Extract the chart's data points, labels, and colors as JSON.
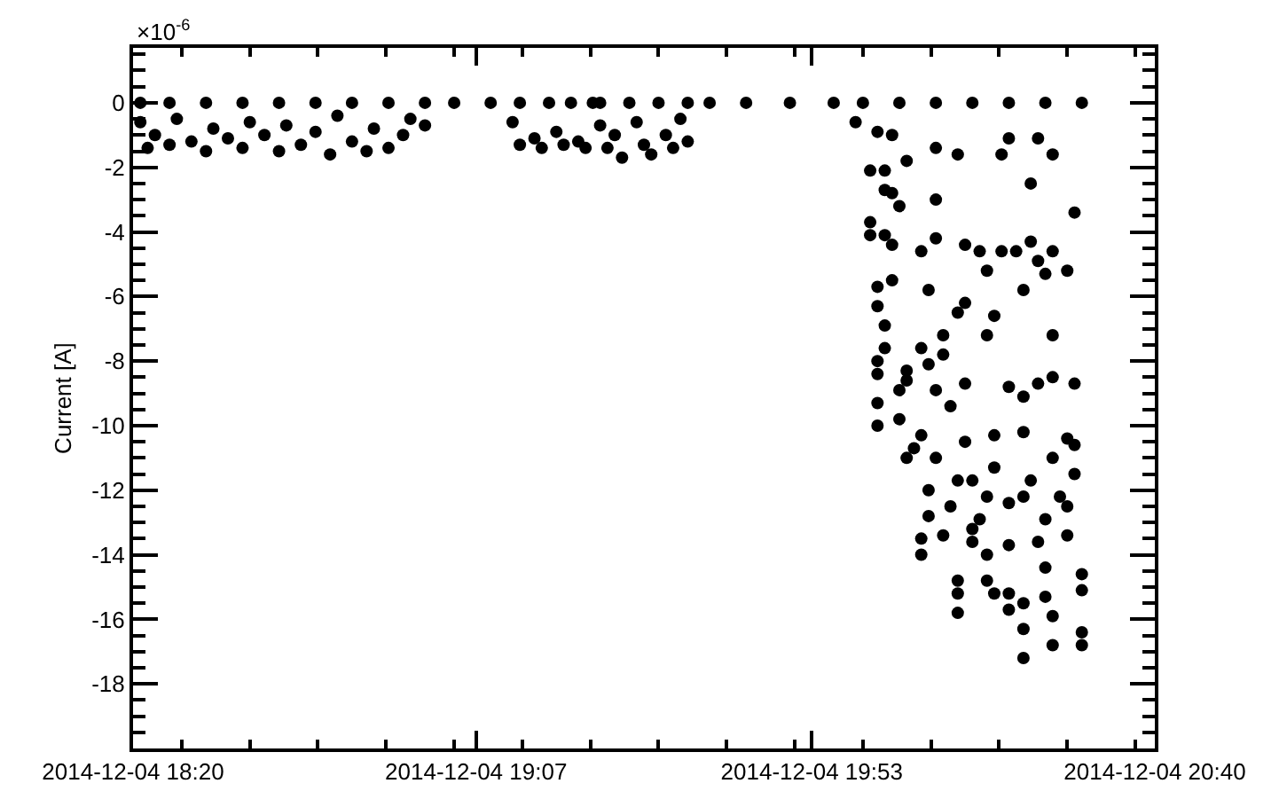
{
  "chart_data": {
    "type": "scatter",
    "ylabel": "Current [A]",
    "annotations": [
      "×10$^{-6}$"
    ],
    "xlim": [
      "2014-12-04T18:20",
      "2014-12-04T20:40"
    ],
    "xticks": [
      {
        "value": "2014-12-04T18:20",
        "label": "2014-12-04 18:20"
      },
      {
        "value": "2014-12-04T19:07",
        "label": "2014-12-04 19:07"
      },
      {
        "value": "2014-12-04T19:53",
        "label": "2014-12-04 19:53"
      },
      {
        "value": "2014-12-04T20:40",
        "label": "2014-12-04 20:40"
      }
    ],
    "ylim": [
      -20,
      1.7
    ],
    "yticks": [
      0,
      -2,
      -4,
      -6,
      -8,
      -10,
      -12,
      -14,
      -16,
      -18
    ],
    "marker": "circle",
    "series": [
      {
        "color": "#000000",
        "x": [
          "2014-12-04T18:21",
          "2014-12-04T18:25",
          "2014-12-04T18:30",
          "2014-12-04T18:35",
          "2014-12-04T18:40",
          "2014-12-04T18:45",
          "2014-12-04T18:50",
          "2014-12-04T18:55",
          "2014-12-04T19:00",
          "2014-12-04T19:04",
          "2014-12-04T18:21",
          "2014-12-04T18:22",
          "2014-12-04T18:23",
          "2014-12-04T18:25",
          "2014-12-04T18:26",
          "2014-12-04T18:28",
          "2014-12-04T18:30",
          "2014-12-04T18:31",
          "2014-12-04T18:33",
          "2014-12-04T18:35",
          "2014-12-04T18:36",
          "2014-12-04T18:38",
          "2014-12-04T18:40",
          "2014-12-04T18:41",
          "2014-12-04T18:43",
          "2014-12-04T18:45",
          "2014-12-04T18:47",
          "2014-12-04T18:48",
          "2014-12-04T18:50",
          "2014-12-04T18:52",
          "2014-12-04T18:53",
          "2014-12-04T18:55",
          "2014-12-04T18:57",
          "2014-12-04T18:58",
          "2014-12-04T19:00",
          "2014-12-04T19:09",
          "2014-12-04T19:13",
          "2014-12-04T19:17",
          "2014-12-04T19:20",
          "2014-12-04T19:23",
          "2014-12-04T19:12",
          "2014-12-04T19:13",
          "2014-12-04T19:15",
          "2014-12-04T19:16",
          "2014-12-04T19:18",
          "2014-12-04T19:19",
          "2014-12-04T19:21",
          "2014-12-04T19:22",
          "2014-12-04T19:24",
          "2014-12-04T19:28",
          "2014-12-04T19:32",
          "2014-12-04T19:36",
          "2014-12-04T19:39",
          "2014-12-04T19:24",
          "2014-12-04T19:25",
          "2014-12-04T19:26",
          "2014-12-04T19:27",
          "2014-12-04T19:29",
          "2014-12-04T19:30",
          "2014-12-04T19:31",
          "2014-12-04T19:33",
          "2014-12-04T19:34",
          "2014-12-04T19:35",
          "2014-12-04T19:36",
          "2014-12-04T19:44",
          "2014-12-04T19:50",
          "2014-12-04T19:56",
          "2014-12-04T20:00",
          "2014-12-04T20:05",
          "2014-12-04T20:10",
          "2014-12-04T20:15",
          "2014-12-04T20:20",
          "2014-12-04T20:25",
          "2014-12-04T20:30",
          "2014-12-04T19:59",
          "2014-12-04T20:02",
          "2014-12-04T20:04",
          "2014-12-04T20:10",
          "2014-12-04T20:13",
          "2014-12-04T20:19",
          "2014-12-04T20:20",
          "2014-12-04T20:24",
          "2014-12-04T20:26",
          "2014-12-04T20:06",
          "2014-12-04T20:01",
          "2014-12-04T20:03",
          "2014-12-04T20:23",
          "2014-12-04T20:03",
          "2014-12-04T20:04",
          "2014-12-04T20:05",
          "2014-12-04T20:10",
          "2014-12-04T20:29",
          "2014-12-04T20:01",
          "2014-12-04T20:01",
          "2014-12-04T20:03",
          "2014-12-04T20:04",
          "2014-12-04T20:10",
          "2014-12-04T20:08",
          "2014-12-04T20:14",
          "2014-12-04T20:16",
          "2014-12-04T20:17",
          "2014-12-04T20:19",
          "2014-12-04T20:21",
          "2014-12-04T20:23",
          "2014-12-04T20:24",
          "2014-12-04T20:25",
          "2014-12-04T20:26",
          "2014-12-04T20:28",
          "2014-12-04T20:02",
          "2014-12-04T20:04",
          "2014-12-04T20:09",
          "2014-12-04T20:22",
          "2014-12-04T20:02",
          "2014-12-04T20:14",
          "2014-12-04T20:13",
          "2014-12-04T20:18",
          "2014-12-04T20:03",
          "2014-12-04T20:11",
          "2014-12-04T20:17",
          "2014-12-04T20:26",
          "2014-12-04T20:03",
          "2014-12-04T20:08",
          "2014-12-04T20:11",
          "2014-12-04T20:02",
          "2014-12-04T20:09",
          "2014-12-04T20:06",
          "2014-12-04T20:26",
          "2014-12-04T20:14",
          "2014-12-04T20:20",
          "2014-12-04T20:24",
          "2014-12-04T20:29",
          "2014-12-04T20:22",
          "2014-12-04T20:05",
          "2014-12-04T20:02",
          "2014-12-04T20:06",
          "2014-12-04T20:02",
          "2014-12-04T20:02",
          "2014-12-04T20:10",
          "2014-12-04T20:05",
          "2014-12-04T20:08",
          "2014-12-04T20:12",
          "2014-12-04T20:06",
          "2014-12-04T20:10",
          "2014-12-04T20:14",
          "2014-12-04T20:18",
          "2014-12-04T20:22",
          "2014-12-04T20:28",
          "2014-12-04T20:29",
          "2014-12-04T20:09",
          "2014-12-04T20:13",
          "2014-12-04T20:18",
          "2014-12-04T20:23",
          "2014-12-04T20:26",
          "2014-12-04T20:29",
          "2014-12-04T20:09",
          "2014-12-04T20:12",
          "2014-12-04T20:16",
          "2014-12-04T20:20",
          "2014-12-04T20:25",
          "2014-12-04T20:28",
          "2014-12-04T20:11",
          "2014-12-04T20:15",
          "2014-12-04T20:20",
          "2014-12-04T20:24",
          "2014-12-04T20:28",
          "2014-12-04T20:08",
          "2014-12-04T20:08",
          "2014-12-04T20:13",
          "2014-12-04T20:13",
          "2014-12-04T20:13",
          "2014-12-04T20:17",
          "2014-12-04T20:17",
          "2014-12-04T20:20",
          "2014-12-04T20:22",
          "2014-12-04T20:22",
          "2014-12-04T20:22",
          "2014-12-04T20:25",
          "2014-12-04T20:25",
          "2014-12-04T20:26",
          "2014-12-04T20:26",
          "2014-12-04T20:30",
          "2014-12-04T20:30",
          "2014-12-04T20:30",
          "2014-12-04T20:30",
          "2014-12-04T20:20",
          "2014-12-04T20:18",
          "2014-12-04T20:15",
          "2014-12-04T20:07",
          "2014-12-04T20:22",
          "2014-12-04T20:27",
          "2014-12-04T20:17",
          "2014-12-04T20:15"
        ],
        "values": [
          0,
          0,
          0,
          0,
          0,
          0,
          0,
          0,
          0,
          0,
          -0.6,
          -1.4,
          -1.0,
          -1.3,
          -0.5,
          -1.2,
          -1.5,
          -0.8,
          -1.1,
          -1.4,
          -0.6,
          -1.0,
          -1.5,
          -0.7,
          -1.3,
          -0.9,
          -1.6,
          -0.4,
          -1.2,
          -1.5,
          -0.8,
          -1.4,
          -1.0,
          -0.5,
          -0.7,
          0,
          0,
          0,
          0,
          0,
          -0.6,
          -1.3,
          -1.1,
          -1.4,
          -0.9,
          -1.3,
          -1.2,
          -1.4,
          0,
          0,
          0,
          0,
          0,
          -0.7,
          -1.4,
          -1.0,
          -1.7,
          -0.6,
          -1.3,
          -1.6,
          -1.0,
          -1.4,
          -0.5,
          -1.2,
          0,
          0,
          0,
          0,
          0,
          0,
          0,
          0,
          0,
          0,
          -0.6,
          -0.9,
          -1.0,
          -1.4,
          -1.6,
          -1.6,
          -1.1,
          -1.1,
          -1.6,
          -1.8,
          -2.1,
          -2.1,
          -2.5,
          -2.7,
          -2.8,
          -3.2,
          -3.0,
          -3.4,
          -3.7,
          -4.1,
          -4.1,
          -4.4,
          -4.2,
          -4.6,
          -4.4,
          -4.6,
          -5.2,
          -4.6,
          -4.6,
          -4.3,
          -4.9,
          -5.3,
          -4.6,
          -5.2,
          -5.7,
          -5.5,
          -5.8,
          -5.8,
          -6.3,
          -6.2,
          -6.5,
          -6.6,
          -6.9,
          -7.2,
          -7.2,
          -7.2,
          -7.6,
          -7.6,
          -7.8,
          -8.0,
          -8.1,
          -8.3,
          -8.5,
          -8.7,
          -8.8,
          -8.7,
          -8.7,
          -9.1,
          -8.9,
          -8.4,
          -8.6,
          -9.3,
          -10.0,
          -8.9,
          -9.8,
          -10.3,
          -9.4,
          -11.0,
          -11.0,
          -10.5,
          -10.3,
          -10.2,
          -10.4,
          -10.6,
          -12.0,
          -11.7,
          -11.3,
          -11.7,
          -11.0,
          -11.5,
          -12.8,
          -12.5,
          -12.9,
          -12.4,
          -12.9,
          -12.5,
          -13.4,
          -13.6,
          -13.7,
          -13.6,
          -13.4,
          -14.0,
          -13.5,
          -14.8,
          -15.2,
          -15.8,
          -14.0,
          -14.8,
          -15.2,
          -15.5,
          -16.3,
          -17.2,
          -14.4,
          -15.3,
          -15.9,
          -16.8,
          -14.6,
          -15.1,
          -16.4,
          -16.8,
          -15.7,
          -15.2,
          -11.7,
          -10.7,
          -12.2,
          -12.2,
          -12.2,
          -13.2
        ]
      }
    ]
  }
}
